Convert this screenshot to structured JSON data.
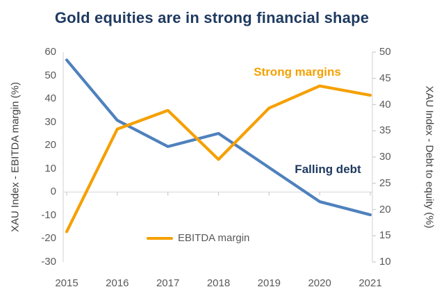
{
  "title": {
    "text": "Gold equities are in strong financial shape",
    "color": "#1F3A60"
  },
  "chart_data": {
    "type": "line",
    "x": [
      "2015",
      "2016",
      "2017",
      "2018",
      "2019",
      "2020",
      "2021"
    ],
    "series": [
      {
        "name": "EBITDA margin",
        "axis": "left",
        "color": "#F5A000",
        "values": [
          -17,
          27,
          35,
          14,
          36,
          45.5,
          41.5
        ]
      },
      {
        "name": "Debt to equity",
        "axis": "right",
        "color": "#4F81BD",
        "values": [
          48.5,
          37,
          32,
          34.5,
          28,
          21.5,
          19
        ]
      }
    ],
    "left_axis": {
      "label": "XAU Index - EBITDA margin (%)",
      "min": -30,
      "max": 60,
      "ticks": [
        60,
        50,
        40,
        30,
        20,
        10,
        0,
        -10,
        -20,
        -30
      ]
    },
    "right_axis": {
      "label": "XAU Index - Debt to equity (%)",
      "min": 10,
      "max": 50,
      "ticks": [
        50,
        45,
        40,
        35,
        30,
        25,
        20,
        15,
        10
      ]
    },
    "gridline_at": 0,
    "grid_color": "#D9D9D9",
    "tick_color": "#C9C9C9",
    "legend": {
      "position": "bottom-inside",
      "items": [
        {
          "label": "EBITDA margin",
          "color": "#F5A000"
        }
      ]
    },
    "annotations": [
      {
        "text": "Strong margins",
        "color": "#F5A000"
      },
      {
        "text": "Falling debt",
        "color": "#1F3A60"
      }
    ]
  }
}
